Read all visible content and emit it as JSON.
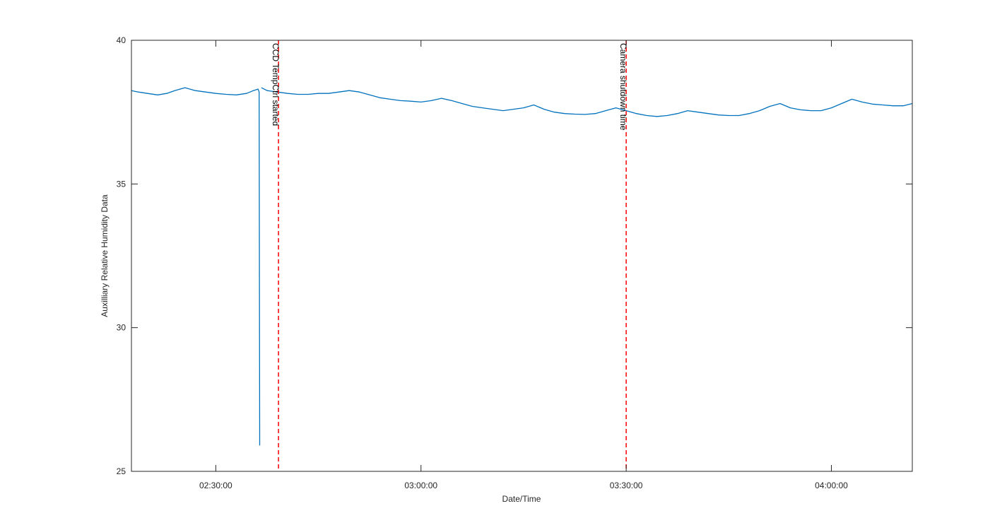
{
  "chart_data": {
    "type": "line",
    "xlabel": "Date/Time",
    "ylabel": "Auxilliary Relative Humidity Data",
    "xlim": [
      "02:17:40",
      "04:11:50"
    ],
    "ylim": [
      25,
      40
    ],
    "grid": false,
    "x_ticks": [
      "02:30:00",
      "03:00:00",
      "03:30:00",
      "04:00:00"
    ],
    "y_ticks": [
      "25",
      "30",
      "35",
      "40"
    ],
    "colors": {
      "series": "#0072BD",
      "event": "#FF0000",
      "axis": "#262626"
    },
    "series": [
      {
        "segments": [
          {
            "x": [
              "02:17:40",
              "02:18:40",
              "02:20:00",
              "02:21:30",
              "02:22:50",
              "02:24:00",
              "02:25:30",
              "02:27:00",
              "02:28:30",
              "02:30:00",
              "02:31:30",
              "02:33:00",
              "02:34:30",
              "02:35:30",
              "02:36:10",
              "02:36:20",
              "02:36:25"
            ],
            "y": [
              38.25,
              38.2,
              38.15,
              38.1,
              38.15,
              38.25,
              38.35,
              38.25,
              38.2,
              38.15,
              38.12,
              38.1,
              38.15,
              38.25,
              38.3,
              38.2,
              25.9
            ]
          },
          {
            "x": [
              "02:36:40",
              "02:37:30",
              "02:39:00",
              "02:40:30",
              "02:42:00",
              "02:43:30",
              "02:45:00",
              "02:46:30",
              "02:48:00",
              "02:49:30",
              "02:51:00",
              "02:52:30",
              "02:54:00",
              "02:55:30",
              "02:57:00",
              "02:58:30",
              "03:00:00",
              "03:01:30",
              "03:03:00",
              "03:04:30",
              "03:06:00",
              "03:07:30",
              "03:09:00",
              "03:10:30",
              "03:12:00",
              "03:13:30",
              "03:15:00",
              "03:16:30",
              "03:18:00",
              "03:19:30",
              "03:21:00",
              "03:22:30",
              "03:24:00",
              "03:25:30",
              "03:27:00",
              "03:28:30",
              "03:30:00",
              "03:31:30",
              "03:33:00",
              "03:34:30",
              "03:36:00",
              "03:37:30",
              "03:39:00",
              "03:40:30",
              "03:42:00",
              "03:43:30",
              "03:45:00",
              "03:46:30",
              "03:48:00",
              "03:49:30",
              "03:51:00",
              "03:52:30",
              "03:54:00",
              "03:55:30",
              "03:57:00",
              "03:58:30",
              "04:00:00",
              "04:01:30",
              "04:03:00",
              "04:04:30",
              "04:06:00",
              "04:07:30",
              "04:09:00",
              "04:10:30",
              "04:11:50"
            ],
            "y": [
              38.35,
              38.25,
              38.2,
              38.15,
              38.12,
              38.12,
              38.15,
              38.15,
              38.2,
              38.25,
              38.2,
              38.1,
              38.0,
              37.95,
              37.9,
              37.88,
              37.85,
              37.9,
              37.98,
              37.9,
              37.8,
              37.7,
              37.65,
              37.6,
              37.55,
              37.6,
              37.65,
              37.75,
              37.6,
              37.5,
              37.45,
              37.43,
              37.42,
              37.45,
              37.55,
              37.65,
              37.55,
              37.45,
              37.38,
              37.35,
              37.38,
              37.45,
              37.55,
              37.5,
              37.45,
              37.4,
              37.38,
              37.38,
              37.45,
              37.55,
              37.7,
              37.8,
              37.65,
              37.58,
              37.55,
              37.55,
              37.65,
              37.8,
              37.95,
              37.85,
              37.78,
              37.75,
              37.72,
              37.72,
              37.8
            ]
          }
        ]
      }
    ],
    "annotations": [
      {
        "x": "02:39:10",
        "text": "CCD TempCtrl started"
      },
      {
        "x": "03:30:00",
        "text": "Camera shutdown time"
      }
    ]
  }
}
